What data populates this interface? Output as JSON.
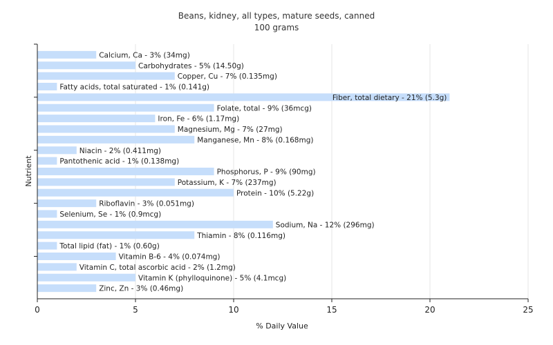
{
  "chart_data": {
    "type": "bar",
    "orientation": "horizontal",
    "title": "Beans, kidney, all types, mature seeds, canned",
    "subtitle": "100 grams",
    "xlabel": "% Daily Value",
    "ylabel": "Nutrient",
    "xlim": [
      0,
      25
    ],
    "xticks": [
      0,
      5,
      10,
      15,
      20,
      25
    ],
    "grid": true,
    "bar_color": "#c6defb",
    "categories": [
      "Calcium, Ca",
      "Carbohydrates",
      "Copper, Cu",
      "Fatty acids, total saturated",
      "Fiber, total dietary",
      "Folate, total",
      "Iron, Fe",
      "Magnesium, Mg",
      "Manganese, Mn",
      "Niacin",
      "Pantothenic acid",
      "Phosphorus, P",
      "Potassium, K",
      "Protein",
      "Riboflavin",
      "Selenium, Se",
      "Sodium, Na",
      "Thiamin",
      "Total lipid (fat)",
      "Vitamin B-6",
      "Vitamin C, total ascorbic acid",
      "Vitamin K (phylloquinone)",
      "Zinc, Zn"
    ],
    "values": [
      3,
      5,
      7,
      1,
      21,
      9,
      6,
      7,
      8,
      2,
      1,
      9,
      7,
      10,
      3,
      1,
      12,
      8,
      1,
      4,
      2,
      5,
      3
    ],
    "labels": [
      "Calcium, Ca - 3% (34mg)",
      "Carbohydrates - 5% (14.50g)",
      "Copper, Cu - 7% (0.135mg)",
      "Fatty acids, total saturated - 1% (0.141g)",
      "Fiber, total dietary - 21% (5.3g)",
      "Folate, total - 9% (36mcg)",
      "Iron, Fe - 6% (1.17mg)",
      "Magnesium, Mg - 7% (27mg)",
      "Manganese, Mn - 8% (0.168mg)",
      "Niacin - 2% (0.411mg)",
      "Pantothenic acid - 1% (0.138mg)",
      "Phosphorus, P - 9% (90mg)",
      "Potassium, K - 7% (237mg)",
      "Protein - 10% (5.22g)",
      "Riboflavin - 3% (0.051mg)",
      "Selenium, Se - 1% (0.9mcg)",
      "Sodium, Na - 12% (296mg)",
      "Thiamin - 8% (0.116mg)",
      "Total lipid (fat) - 1% (0.60g)",
      "Vitamin B-6 - 4% (0.074mg)",
      "Vitamin C, total ascorbic acid - 2% (1.2mg)",
      "Vitamin K (phylloquinone) - 5% (4.1mcg)",
      "Zinc, Zn - 3% (0.46mg)"
    ]
  }
}
